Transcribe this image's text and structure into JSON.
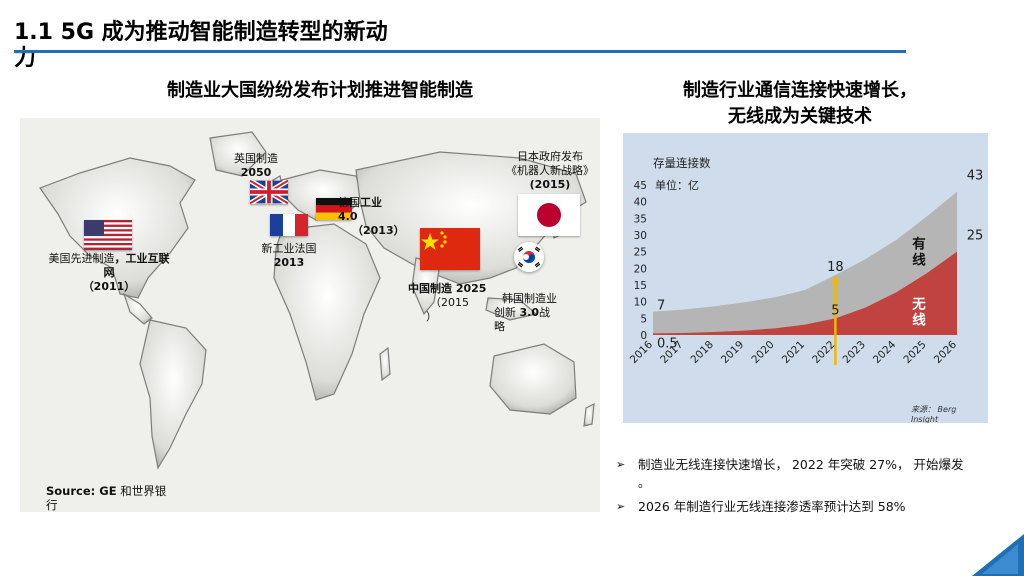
{
  "page": {
    "title_line1": "1.1 5G 成为推动智能制造转型的新动",
    "title_line2": "力"
  },
  "left": {
    "heading": "制造业大国纷纷发布计划推进智能制造",
    "labels": {
      "uk_name": "英国制造",
      "uk_year": "2050",
      "germany_name": "德国",
      "germany_bold": "工业",
      "germany_ver": "4.0",
      "germany_year": "（2013）",
      "france_name": "新工业法国",
      "france_year": "2013",
      "usa_name": "美国先进制造",
      "usa_bold": "，工业互联",
      "usa_bold2": "网",
      "usa_year": "（2011）",
      "china_name": "中国制造 2025",
      "china_year": "（2015",
      "china_close": "）",
      "korea_line1": "韩国制造业",
      "korea_line2a": "创新",
      "korea_line2b": "3.0",
      "korea_line2c": "战",
      "korea_line3": "略",
      "japan_line1": "日本政府发布",
      "japan_line2": "《机器人新战略》",
      "japan_year": "(2015)"
    },
    "source_bold": "Source: GE",
    "source_rest": " 和世界银",
    "source_line2": "行"
  },
  "right": {
    "heading_line1": "制造行业通信连接快速增长，",
    "heading_line2": "无线成为关键技术",
    "chart_title": "存量连接数",
    "chart_unit": "单位：亿",
    "chart_source_line1": "来源： Berg",
    "chart_source_line2": "Insight"
  },
  "chart_data": {
    "type": "area",
    "x": [
      "2016",
      "2017",
      "2018",
      "2019",
      "2020",
      "2021",
      "2022",
      "2023",
      "2024",
      "2025",
      "2026"
    ],
    "y_ticks": [
      "0",
      "5",
      "10",
      "15",
      "20",
      "25",
      "30",
      "35",
      "40",
      "45"
    ],
    "ylim": [
      0,
      45
    ],
    "series": [
      {
        "name": "有线",
        "label": "有线",
        "color": "#b5b5b5",
        "values": [
          7,
          7.6,
          8.6,
          9.8,
          11.3,
          13.5,
          18,
          22.8,
          28.5,
          35.5,
          43
        ]
      },
      {
        "name": "无线",
        "label": "无线",
        "color": "#c0433f",
        "values": [
          0.5,
          0.6,
          0.9,
          1.3,
          2.0,
          3.1,
          5,
          8.3,
          12.8,
          18.5,
          25
        ]
      }
    ],
    "annotations": [
      {
        "x": "2016",
        "text": "7"
      },
      {
        "x": "2016",
        "text": "0.5"
      },
      {
        "x": "2022",
        "text": "18"
      },
      {
        "x": "2022",
        "text": "5"
      },
      {
        "x": "2026",
        "text": "43"
      },
      {
        "x": "2026",
        "text": "25"
      }
    ],
    "marker_x": "2022",
    "marker_color": "#f2b705"
  },
  "bullets": {
    "b1_line1": "制造业无线连接快速增长， 2022 年突破 27%， 开始爆发",
    "b1_line2": "。",
    "b2": "2026 年制造行业无线连接渗透率预计达到 58%"
  },
  "colors": {
    "accent": "#1f6fb2",
    "corner": "#1f6fb2"
  }
}
